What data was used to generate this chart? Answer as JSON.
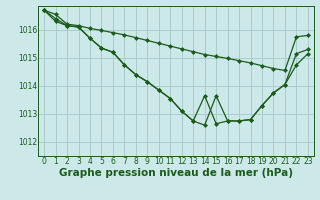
{
  "title": "Graphe pression niveau de la mer (hPa)",
  "background_color": "#cce8e8",
  "grid_color": "#aacccc",
  "line_color": "#1a5c1a",
  "xlim": [
    -0.5,
    23.5
  ],
  "ylim": [
    1011.5,
    1016.85
  ],
  "yticks": [
    1012,
    1013,
    1014,
    1015,
    1016
  ],
  "xticks": [
    0,
    1,
    2,
    3,
    4,
    5,
    6,
    7,
    8,
    9,
    10,
    11,
    12,
    13,
    14,
    15,
    16,
    17,
    18,
    19,
    20,
    21,
    22,
    23
  ],
  "line1": [
    1016.7,
    1016.55,
    1016.2,
    1016.15,
    1016.05,
    1015.98,
    1015.9,
    1015.82,
    1015.72,
    1015.62,
    1015.52,
    1015.42,
    1015.32,
    1015.22,
    1015.12,
    1015.05,
    1014.98,
    1014.9,
    1014.82,
    1014.72,
    1014.62,
    1014.55,
    1015.75,
    1015.8
  ],
  "line2": [
    1016.7,
    1016.4,
    1016.15,
    1016.1,
    1015.7,
    1015.35,
    1015.2,
    1014.75,
    1014.4,
    1014.15,
    1013.85,
    1013.55,
    1013.1,
    1012.75,
    1012.6,
    1013.65,
    1012.75,
    1012.75,
    1012.8,
    1013.3,
    1013.75,
    1014.05,
    1015.15,
    1015.3
  ],
  "line3": [
    1016.7,
    1016.3,
    1016.15,
    1016.1,
    1015.7,
    1015.35,
    1015.2,
    1014.75,
    1014.4,
    1014.15,
    1013.85,
    1013.55,
    1013.1,
    1012.75,
    1013.65,
    1012.65,
    1012.75,
    1012.75,
    1012.8,
    1013.3,
    1013.75,
    1014.05,
    1014.75,
    1015.15
  ],
  "title_fontsize": 7.5,
  "tick_fontsize": 5.5,
  "marker_size": 2.5,
  "line_width": 0.9
}
